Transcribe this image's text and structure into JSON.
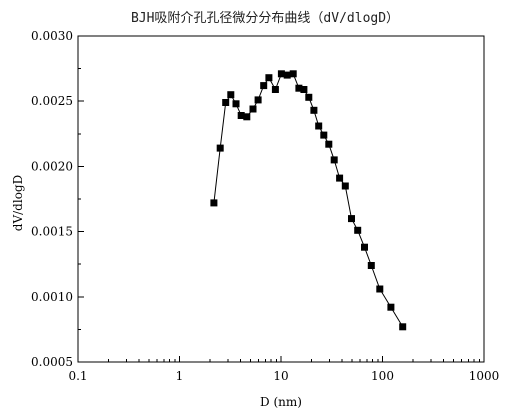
{
  "chart_data": {
    "type": "scatter",
    "title": "BJH吸附介孔孔径微分分布曲线（dV/dlogD）",
    "xlabel": "D (nm)",
    "ylabel": "dV/dlogD",
    "x_scale": "log",
    "xlim": [
      0.1,
      1000
    ],
    "ylim": [
      0.0005,
      0.003
    ],
    "x_ticks": [
      {
        "value": 0.1,
        "label": "0.1"
      },
      {
        "value": 1,
        "label": "1"
      },
      {
        "value": 10,
        "label": "10"
      },
      {
        "value": 100,
        "label": "100"
      },
      {
        "value": 1000,
        "label": "1000"
      }
    ],
    "y_ticks": [
      {
        "value": 0.0005,
        "label": "0.0005"
      },
      {
        "value": 0.001,
        "label": "0.0010"
      },
      {
        "value": 0.0015,
        "label": "0.0015"
      },
      {
        "value": 0.002,
        "label": "0.0020"
      },
      {
        "value": 0.0025,
        "label": "0.0025"
      },
      {
        "value": 0.003,
        "label": "0.0030"
      }
    ],
    "series": [
      {
        "marker": "square",
        "line": true,
        "color": "#000000",
        "points": [
          {
            "x": 2.18,
            "y": 0.00172
          },
          {
            "x": 2.52,
            "y": 0.00214
          },
          {
            "x": 2.85,
            "y": 0.00249
          },
          {
            "x": 3.2,
            "y": 0.00255
          },
          {
            "x": 3.6,
            "y": 0.00248
          },
          {
            "x": 4.05,
            "y": 0.00239
          },
          {
            "x": 4.6,
            "y": 0.00238
          },
          {
            "x": 5.3,
            "y": 0.00244
          },
          {
            "x": 5.95,
            "y": 0.00251
          },
          {
            "x": 6.75,
            "y": 0.00262
          },
          {
            "x": 7.6,
            "y": 0.00268
          },
          {
            "x": 8.8,
            "y": 0.00259
          },
          {
            "x": 10.1,
            "y": 0.00271
          },
          {
            "x": 11.5,
            "y": 0.0027
          },
          {
            "x": 13.2,
            "y": 0.00271
          },
          {
            "x": 15.0,
            "y": 0.0026
          },
          {
            "x": 16.8,
            "y": 0.00259
          },
          {
            "x": 18.8,
            "y": 0.00253
          },
          {
            "x": 21.1,
            "y": 0.00243
          },
          {
            "x": 23.5,
            "y": 0.00231
          },
          {
            "x": 26.4,
            "y": 0.00224
          },
          {
            "x": 29.6,
            "y": 0.00217
          },
          {
            "x": 33.4,
            "y": 0.00205
          },
          {
            "x": 37.8,
            "y": 0.00191
          },
          {
            "x": 43.0,
            "y": 0.00185
          },
          {
            "x": 49.5,
            "y": 0.0016
          },
          {
            "x": 57.0,
            "y": 0.00151
          },
          {
            "x": 66.5,
            "y": 0.00138
          },
          {
            "x": 77.5,
            "y": 0.00124
          },
          {
            "x": 94.0,
            "y": 0.00106
          },
          {
            "x": 121.0,
            "y": 0.00092
          },
          {
            "x": 158.0,
            "y": 0.00077
          }
        ]
      }
    ]
  }
}
